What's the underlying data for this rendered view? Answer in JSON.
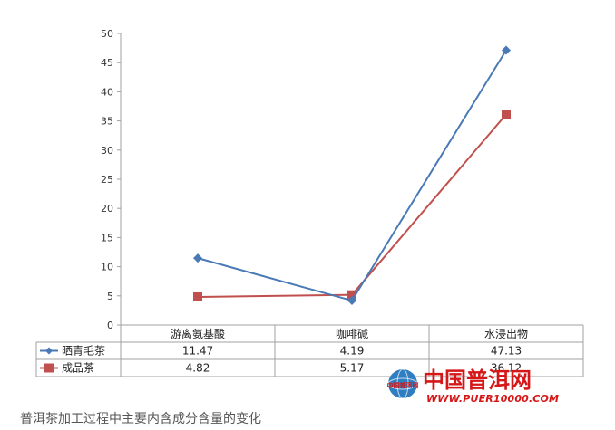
{
  "chart_data": {
    "type": "line",
    "categories": [
      "游离氨基酸",
      "咖啡碱",
      "水浸出物"
    ],
    "series": [
      {
        "name": "晒青毛茶",
        "values": [
          11.47,
          4.19,
          47.13
        ],
        "color": "#4a7ab5",
        "marker": "diamond"
      },
      {
        "name": "成品茶",
        "values": [
          4.82,
          5.17,
          36.12
        ],
        "color": "#c0504d",
        "marker": "square"
      }
    ],
    "table_values": [
      [
        "11.47",
        "4.19",
        "47.13"
      ],
      [
        "4.82",
        "5.17",
        "36.12"
      ]
    ],
    "ylim": [
      0,
      50
    ],
    "yticks": [
      0,
      5,
      10,
      15,
      20,
      25,
      30,
      35,
      40,
      45,
      50
    ],
    "grid": false,
    "legend": "data-table"
  },
  "caption": "普洱茶加工过程中主要内含成分含量的变化",
  "watermark": {
    "text": "中国普洱网",
    "url": "WWW.PUER10000.COM",
    "logo_text": "中国普洱网"
  }
}
